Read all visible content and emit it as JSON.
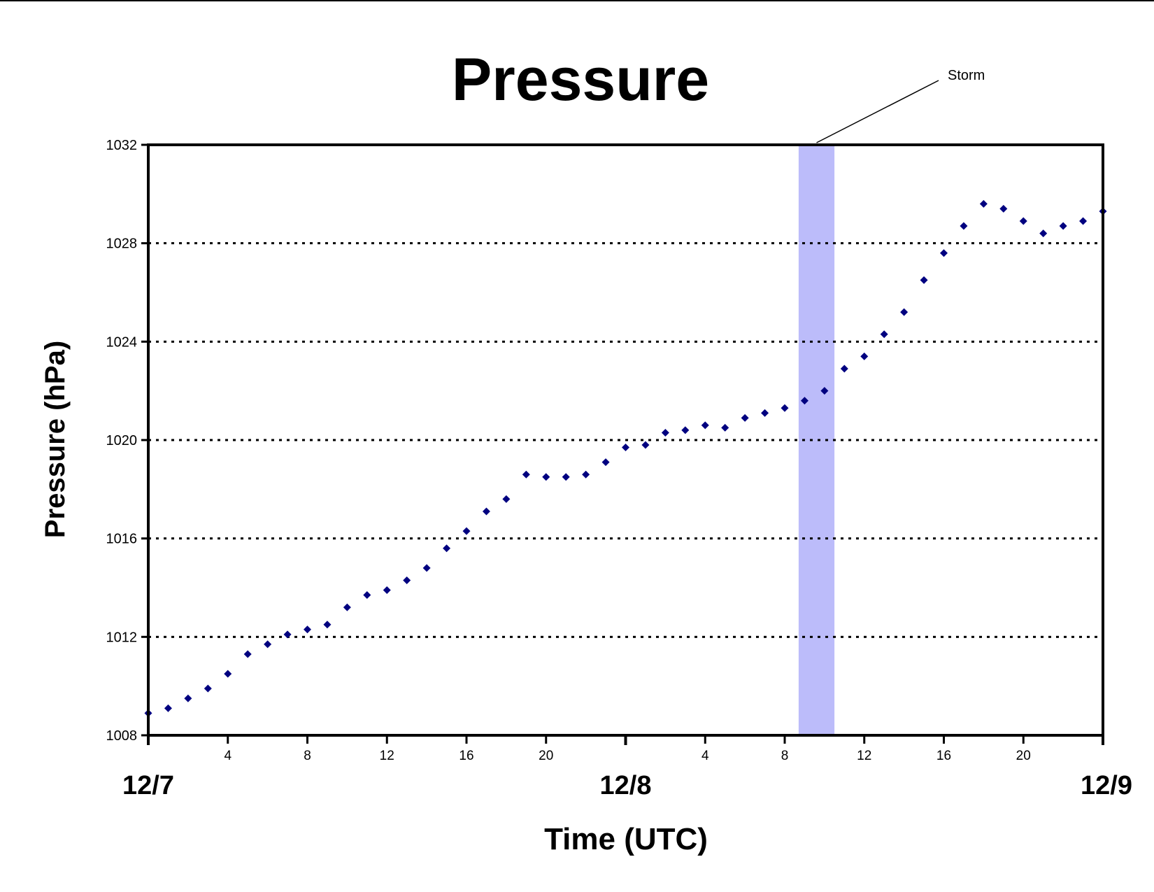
{
  "chart_data": {
    "type": "scatter",
    "title": "Pressure",
    "xlabel": "Time (UTC)",
    "ylabel": "Pressure (hPa)",
    "xlim": [
      "12/7 00",
      "12/9 00"
    ],
    "ylim": [
      1008,
      1032
    ],
    "y_ticks": [
      "1008",
      "1012",
      "1016",
      "1020",
      "1024",
      "1028",
      "1032"
    ],
    "x_hour_ticks": [
      {
        "hour": 4,
        "label": "4"
      },
      {
        "hour": 8,
        "label": "8"
      },
      {
        "hour": 12,
        "label": "12"
      },
      {
        "hour": 16,
        "label": "16"
      },
      {
        "hour": 20,
        "label": "20"
      },
      {
        "hour": 28,
        "label": "4"
      },
      {
        "hour": 32,
        "label": "8"
      },
      {
        "hour": 36,
        "label": "12"
      },
      {
        "hour": 40,
        "label": "16"
      },
      {
        "hour": 44,
        "label": "20"
      }
    ],
    "x_day_labels": [
      {
        "hour": 0,
        "label": "12/7"
      },
      {
        "hour": 24,
        "label": "12/8"
      },
      {
        "hour": 48,
        "label": "12/9"
      }
    ],
    "grid": "horizontal dotted",
    "marker_color": "#000080",
    "series": [
      {
        "x_hours": [
          0,
          1,
          2,
          3,
          4,
          5,
          6,
          7,
          8,
          9,
          10,
          11,
          12,
          13,
          14,
          15,
          16,
          17,
          18,
          19,
          20,
          21,
          22,
          23,
          24,
          25,
          26,
          27,
          28,
          29,
          30,
          31,
          32,
          33,
          34,
          35,
          36,
          37,
          38,
          39,
          40,
          41,
          42,
          43,
          44,
          45,
          46,
          47,
          48
        ],
        "values": [
          1008.9,
          1009.1,
          1009.5,
          1009.9,
          1010.5,
          1011.3,
          1011.7,
          1012.1,
          1012.3,
          1012.5,
          1013.2,
          1013.7,
          1013.9,
          1014.3,
          1014.8,
          1015.6,
          1016.3,
          1017.1,
          1017.6,
          1018.6,
          1018.5,
          1018.5,
          1018.6,
          1019.1,
          1019.7,
          1019.8,
          1020.3,
          1020.4,
          1020.6,
          1020.5,
          1020.9,
          1021.1,
          1021.3,
          1021.6,
          1022.0,
          1022.9,
          1023.4,
          1024.3,
          1025.2,
          1026.5,
          1027.6,
          1028.7,
          1029.6,
          1029.4,
          1028.9,
          1028.4,
          1028.7,
          1028.9,
          1029.3
        ]
      }
    ],
    "annotation": {
      "label": "Storm",
      "x_start_hours": 32.7,
      "x_end_hours": 34.5,
      "color": "#bcbcfa"
    }
  }
}
